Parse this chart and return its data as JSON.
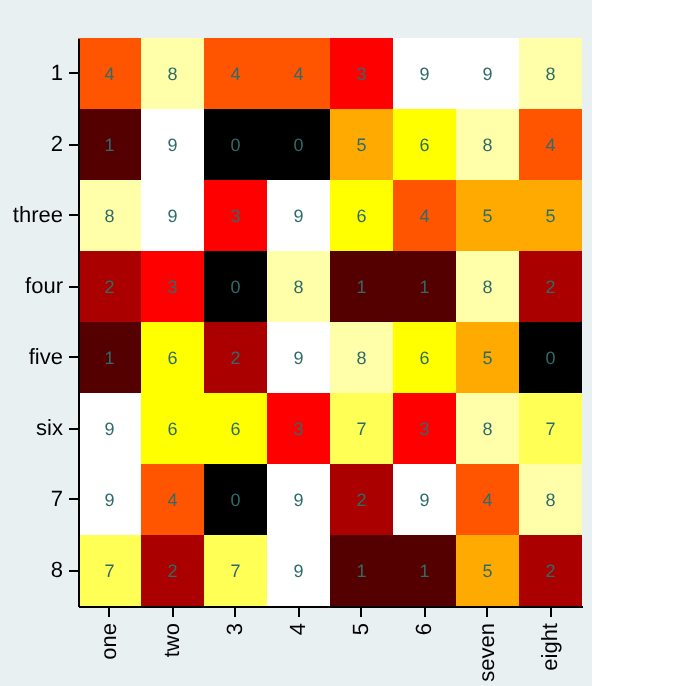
{
  "chart_data": {
    "type": "heatmap",
    "categories": [
      "one",
      "two",
      "3",
      "4",
      "5",
      "6",
      "seven",
      "eight"
    ],
    "y_categories": [
      "1",
      "2",
      "three",
      "four",
      "five",
      "six",
      "7",
      "8"
    ],
    "cells": [
      [
        4,
        8,
        4,
        4,
        3,
        9,
        9,
        8
      ],
      [
        1,
        9,
        0,
        0,
        5,
        6,
        8,
        4
      ],
      [
        8,
        9,
        3,
        9,
        6,
        4,
        5,
        5
      ],
      [
        2,
        3,
        0,
        8,
        1,
        1,
        8,
        2
      ],
      [
        1,
        6,
        2,
        9,
        8,
        6,
        5,
        0
      ],
      [
        9,
        6,
        6,
        3,
        7,
        3,
        8,
        7
      ],
      [
        9,
        4,
        0,
        9,
        2,
        9,
        4,
        8
      ],
      [
        7,
        2,
        7,
        9,
        1,
        1,
        5,
        2
      ]
    ],
    "data_labels": true,
    "grid": false
  }
}
